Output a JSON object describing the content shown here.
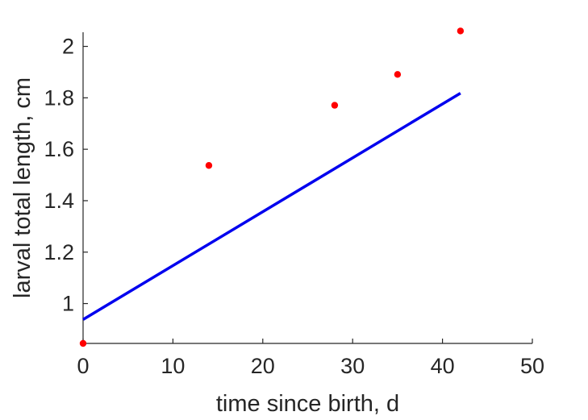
{
  "chart_data": {
    "type": "scatter",
    "title": "",
    "xlabel": "time since birth, d",
    "ylabel": "larval total length, cm",
    "xlim": [
      0,
      50
    ],
    "ylim": [
      0.845,
      2.055
    ],
    "xticks": [
      0,
      10,
      20,
      30,
      40,
      50
    ],
    "xtick_labels": [
      "0",
      "10",
      "20",
      "30",
      "40",
      "50"
    ],
    "yticks": [
      1.0,
      1.2,
      1.4,
      1.6,
      1.8,
      2.0
    ],
    "ytick_labels": [
      "1",
      "1.2",
      "1.4",
      "1.6",
      "1.8",
      "2"
    ],
    "grid": false,
    "series": [
      {
        "type": "scatter",
        "color": "#ff0000",
        "x": [
          0,
          14,
          28,
          35,
          42
        ],
        "y": [
          0.845,
          1.537,
          1.771,
          1.891,
          2.06
        ]
      },
      {
        "type": "line",
        "color": "#0000ee",
        "x": [
          0,
          42
        ],
        "y": [
          0.938,
          1.818
        ]
      }
    ]
  }
}
